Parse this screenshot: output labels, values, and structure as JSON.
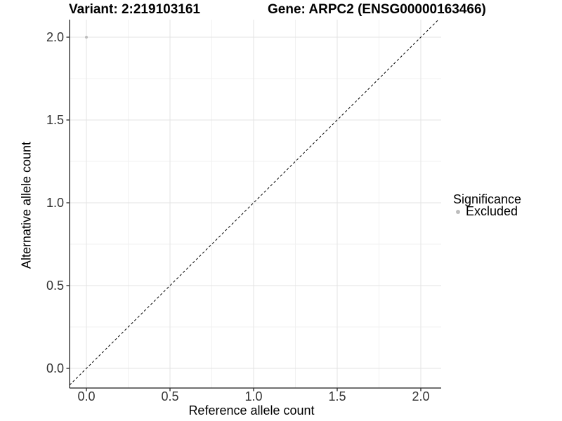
{
  "header": {
    "title_variant": "Variant: 2:219103161",
    "title_gene": "Gene: ARPC2 (ENSG00000163466)"
  },
  "colors": {
    "background": "#ffffff",
    "grid_major": "#e3e3e3",
    "grid_minor": "#f1f1f1",
    "axis_line": "#404040",
    "tick": "#333333",
    "tick_label": "#333333",
    "diagonal_line": "#000000",
    "excluded_point": "#bdbdbd"
  },
  "chart_data": {
    "type": "scatter",
    "title": "Variant: 2:219103161   Gene: ARPC2 (ENSG00000163466)",
    "xlabel": "Reference allele count",
    "ylabel": "Alternative allele count",
    "xlim": [
      -0.1,
      2.12
    ],
    "ylim": [
      -0.12,
      2.11
    ],
    "xticks": {
      "values": [
        0.0,
        0.5,
        1.0,
        1.5,
        2.0
      ],
      "labels": [
        "0.0",
        "0.5",
        "1.0",
        "1.5",
        "2.0"
      ]
    },
    "yticks": {
      "values": [
        0.0,
        0.5,
        1.0,
        1.5,
        2.0
      ],
      "labels": [
        "0.0",
        "0.5",
        "1.0",
        "1.5",
        "2.0"
      ]
    },
    "grid": {
      "major": true,
      "minor": true
    },
    "reference_line": {
      "type": "identity",
      "slope": 1,
      "intercept": 0,
      "style": "dashed"
    },
    "series": [
      {
        "name": "Excluded",
        "color": "#bdbdbd",
        "points": [
          {
            "x": 0.0,
            "y": 2.0
          }
        ]
      }
    ],
    "legend": {
      "title": "Significance",
      "position": "right",
      "items": [
        {
          "label": "Excluded",
          "color": "#bdbdbd",
          "marker": "circle"
        }
      ]
    }
  }
}
